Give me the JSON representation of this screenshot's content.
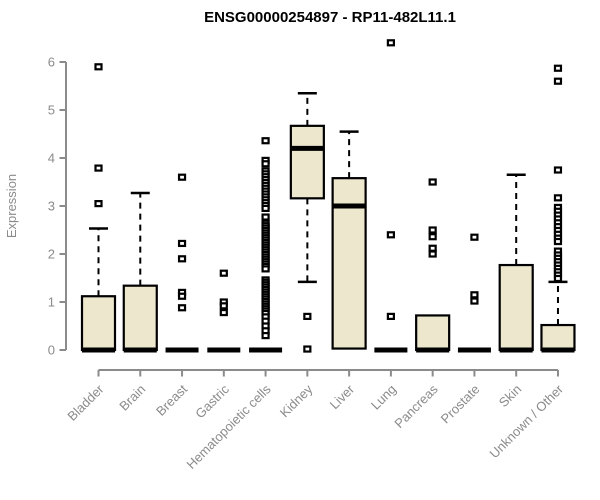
{
  "chart_data": {
    "type": "boxplot",
    "title": "ENSG00000254897 - RP11-482L11.1",
    "ylabel": "Expression",
    "xlabel": "",
    "ylim": [
      0,
      6
    ],
    "yticks": [
      0,
      1,
      2,
      3,
      4,
      5,
      6
    ],
    "grid": false,
    "legend": "none",
    "xticklabel_rotation": 45,
    "categories": [
      "Bladder",
      "Brain",
      "Breast",
      "Gastric",
      "Hematopoietic cells",
      "Kidney",
      "Liver",
      "Lung",
      "Pancreas",
      "Prostate",
      "Skin",
      "Unknown / Other"
    ],
    "boxes": [
      {
        "category": "Bladder",
        "q1": 0,
        "median": 0,
        "q3": 1.12,
        "whisker_low": 0,
        "whisker_high": 2.53,
        "outliers": [
          5.9,
          3.79,
          3.05
        ]
      },
      {
        "category": "Brain",
        "q1": 0,
        "median": 0,
        "q3": 1.34,
        "whisker_low": 0,
        "whisker_high": 3.27,
        "outliers": []
      },
      {
        "category": "Breast",
        "q1": 0,
        "median": 0,
        "q3": 0,
        "whisker_low": 0,
        "whisker_high": 0,
        "outliers": [
          3.6,
          2.22,
          1.9,
          1.2,
          1.12,
          0.88
        ]
      },
      {
        "category": "Gastric",
        "q1": 0,
        "median": 0,
        "q3": 0,
        "whisker_low": 0,
        "whisker_high": 0,
        "outliers": [
          1.6,
          1.0,
          0.92,
          0.78
        ]
      },
      {
        "category": "Hematopoietic cells",
        "q1": 0,
        "median": 0,
        "q3": 0,
        "whisker_low": 0,
        "whisker_high": 0,
        "outliers": [
          4.36,
          3.95,
          3.88,
          3.73,
          3.67,
          3.61,
          3.55,
          3.49,
          3.43,
          3.37,
          3.31,
          3.25,
          3.19,
          3.13,
          3.07,
          3.01,
          2.95,
          2.77,
          2.64,
          2.59,
          2.54,
          2.49,
          2.44,
          2.39,
          2.34,
          2.29,
          2.24,
          2.19,
          2.14,
          2.09,
          2.04,
          1.99,
          1.94,
          1.89,
          1.84,
          1.79,
          1.74,
          1.69,
          1.46,
          1.41,
          1.36,
          1.31,
          1.26,
          1.21,
          1.16,
          1.11,
          1.06,
          1.01,
          0.96,
          0.91,
          0.86,
          0.81,
          0.76,
          0.69,
          0.6,
          0.5,
          0.4,
          0.3
        ]
      },
      {
        "category": "Kidney",
        "q1": 3.16,
        "median": 4.2,
        "q3": 4.67,
        "whisker_low": 1.42,
        "whisker_high": 5.35,
        "outliers": [
          0.7,
          0.02
        ]
      },
      {
        "category": "Liver",
        "q1": 0.03,
        "median": 3.0,
        "q3": 3.58,
        "whisker_low": 0.03,
        "whisker_high": 4.55,
        "outliers": []
      },
      {
        "category": "Lung",
        "q1": 0,
        "median": 0,
        "q3": 0,
        "whisker_low": 0,
        "whisker_high": 0,
        "outliers": [
          6.4,
          2.4,
          0.7
        ]
      },
      {
        "category": "Pancreas",
        "q1": 0,
        "median": 0,
        "q3": 0.72,
        "whisker_low": 0,
        "whisker_high": 0.72,
        "outliers": [
          3.5,
          2.5,
          2.36,
          2.12,
          2.0
        ]
      },
      {
        "category": "Prostate",
        "q1": 0,
        "median": 0,
        "q3": 0,
        "whisker_low": 0,
        "whisker_high": 0,
        "outliers": [
          2.35,
          1.15,
          1.02
        ]
      },
      {
        "category": "Skin",
        "q1": 0,
        "median": 0,
        "q3": 1.77,
        "whisker_low": 0,
        "whisker_high": 3.65,
        "outliers": []
      },
      {
        "category": "Unknown / Other",
        "q1": 0,
        "median": 0,
        "q3": 0.52,
        "whisker_low": 0,
        "whisker_high": 1.42,
        "outliers": [
          5.87,
          5.6,
          3.75,
          3.17,
          2.97,
          2.89,
          2.81,
          2.73,
          2.65,
          2.57,
          2.49,
          2.41,
          2.33,
          2.26,
          2.06,
          1.98,
          1.91,
          1.84,
          1.77,
          1.7,
          1.63,
          1.56,
          1.49
        ]
      }
    ],
    "colors": {
      "box_fill": "#ede7ce",
      "box_stroke": "#000000",
      "whisker": "#000000",
      "outlier": "#000000",
      "axis": "#8b8b8b",
      "tick_label": "#8b8b8b",
      "title": "#000000",
      "background": "#ffffff"
    }
  }
}
